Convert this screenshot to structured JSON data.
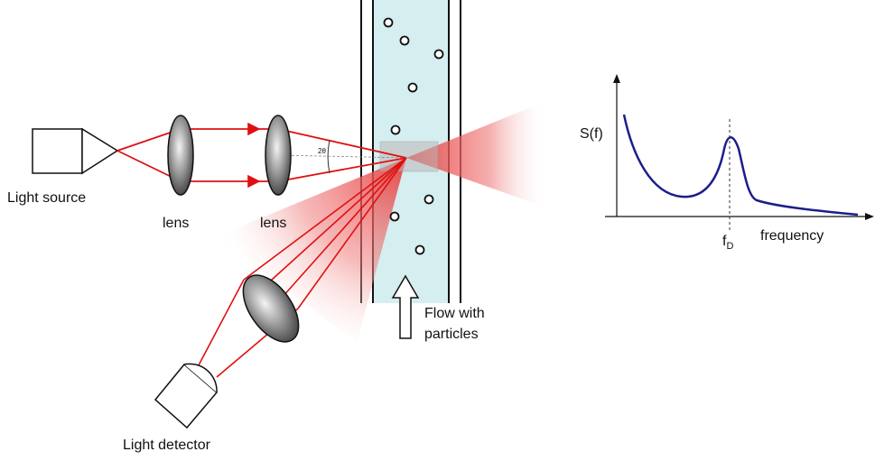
{
  "labels": {
    "light_source": "Light source",
    "lens_1": "lens",
    "lens_2": "lens",
    "light_detector": "Light detector",
    "flow_line_1": "Flow with",
    "flow_line_2": "particles",
    "angle": "2θ"
  },
  "spectrum": {
    "y_label": "S(f)",
    "x_label": "frequency",
    "peak_label_main": "f",
    "peak_label_sub": "D"
  },
  "colors": {
    "laser": "#e01010",
    "flow_fill": "#d5eef0",
    "curve": "#1a1f8a",
    "outline": "#111111"
  }
}
